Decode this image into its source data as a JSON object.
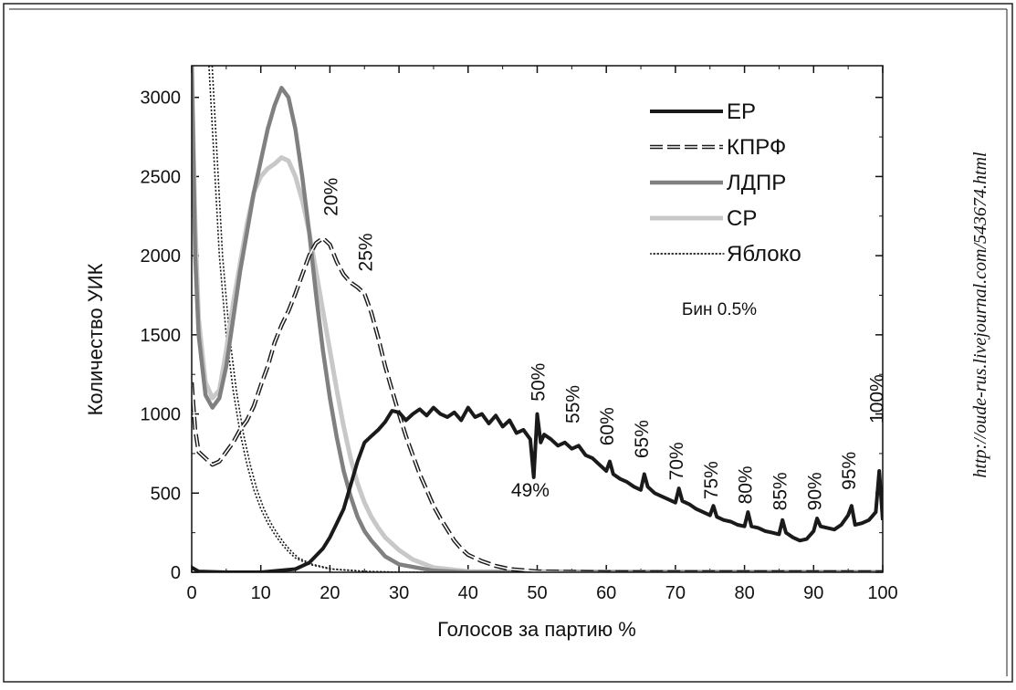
{
  "chart_data": {
    "type": "line",
    "xlabel": "Голосов за партию  %",
    "ylabel": "Количество УИК",
    "xlim": [
      0,
      100
    ],
    "ylim": [
      0,
      3200
    ],
    "x_ticks": [
      0,
      10,
      20,
      30,
      40,
      50,
      60,
      70,
      80,
      90,
      100
    ],
    "y_ticks": [
      0,
      500,
      1000,
      1500,
      2000,
      2500,
      3000
    ],
    "bin_note": "Бин 0.5%",
    "source_url": "http://oude-rus.livejournal.com/543674.html",
    "legend_position": "top-right",
    "series": [
      {
        "name": "ЕР",
        "style": "solid-thick",
        "color": "#1a1a1a",
        "points": [
          [
            0,
            30
          ],
          [
            1,
            5
          ],
          [
            5,
            0
          ],
          [
            10,
            0
          ],
          [
            15,
            20
          ],
          [
            17,
            60
          ],
          [
            19,
            150
          ],
          [
            20,
            220
          ],
          [
            21,
            310
          ],
          [
            22,
            400
          ],
          [
            23,
            550
          ],
          [
            24,
            700
          ],
          [
            25,
            820
          ],
          [
            26,
            860
          ],
          [
            27,
            900
          ],
          [
            28,
            950
          ],
          [
            29,
            1020
          ],
          [
            30,
            1010
          ],
          [
            31,
            960
          ],
          [
            32,
            1000
          ],
          [
            33,
            1030
          ],
          [
            34,
            990
          ],
          [
            35,
            1040
          ],
          [
            36,
            1000
          ],
          [
            37,
            980
          ],
          [
            38,
            1010
          ],
          [
            39,
            960
          ],
          [
            40,
            1040
          ],
          [
            41,
            980
          ],
          [
            42,
            1000
          ],
          [
            43,
            940
          ],
          [
            44,
            990
          ],
          [
            45,
            920
          ],
          [
            46,
            960
          ],
          [
            47,
            880
          ],
          [
            48,
            900
          ],
          [
            49,
            840
          ],
          [
            49.5,
            600
          ],
          [
            50,
            1000
          ],
          [
            50.5,
            820
          ],
          [
            51,
            870
          ],
          [
            52,
            840
          ],
          [
            53,
            800
          ],
          [
            54,
            820
          ],
          [
            55,
            780
          ],
          [
            56,
            800
          ],
          [
            57,
            740
          ],
          [
            58,
            720
          ],
          [
            59,
            680
          ],
          [
            60,
            640
          ],
          [
            60.5,
            700
          ],
          [
            61,
            620
          ],
          [
            62,
            590
          ],
          [
            63,
            570
          ],
          [
            64,
            540
          ],
          [
            65,
            520
          ],
          [
            65.5,
            620
          ],
          [
            66,
            540
          ],
          [
            67,
            500
          ],
          [
            68,
            480
          ],
          [
            69,
            460
          ],
          [
            70,
            440
          ],
          [
            70.5,
            530
          ],
          [
            71,
            450
          ],
          [
            72,
            430
          ],
          [
            73,
            400
          ],
          [
            74,
            380
          ],
          [
            75,
            360
          ],
          [
            75.5,
            420
          ],
          [
            76,
            350
          ],
          [
            77,
            330
          ],
          [
            78,
            320
          ],
          [
            79,
            300
          ],
          [
            80,
            290
          ],
          [
            80.5,
            380
          ],
          [
            81,
            290
          ],
          [
            82,
            280
          ],
          [
            83,
            260
          ],
          [
            84,
            250
          ],
          [
            85,
            240
          ],
          [
            85.5,
            330
          ],
          [
            86,
            250
          ],
          [
            87,
            220
          ],
          [
            88,
            200
          ],
          [
            89,
            210
          ],
          [
            90,
            260
          ],
          [
            90.5,
            340
          ],
          [
            91,
            290
          ],
          [
            92,
            280
          ],
          [
            93,
            270
          ],
          [
            94,
            300
          ],
          [
            95,
            360
          ],
          [
            95.5,
            420
          ],
          [
            96,
            300
          ],
          [
            97,
            310
          ],
          [
            98,
            330
          ],
          [
            99,
            380
          ],
          [
            99.5,
            640
          ],
          [
            100,
            330
          ]
        ]
      },
      {
        "name": "КПРФ",
        "style": "dashed-double",
        "color": "#1a1a1a",
        "points": [
          [
            0,
            1200
          ],
          [
            0.5,
            900
          ],
          [
            1,
            760
          ],
          [
            2,
            720
          ],
          [
            3,
            680
          ],
          [
            4,
            700
          ],
          [
            5,
            760
          ],
          [
            6,
            820
          ],
          [
            7,
            900
          ],
          [
            8,
            960
          ],
          [
            9,
            1050
          ],
          [
            10,
            1180
          ],
          [
            11,
            1300
          ],
          [
            12,
            1450
          ],
          [
            13,
            1560
          ],
          [
            14,
            1650
          ],
          [
            15,
            1760
          ],
          [
            16,
            1880
          ],
          [
            17,
            2000
          ],
          [
            18,
            2080
          ],
          [
            19,
            2110
          ],
          [
            20,
            2070
          ],
          [
            21,
            1960
          ],
          [
            22,
            1880
          ],
          [
            23,
            1830
          ],
          [
            24,
            1800
          ],
          [
            25,
            1760
          ],
          [
            26,
            1640
          ],
          [
            27,
            1480
          ],
          [
            28,
            1300
          ],
          [
            29,
            1150
          ],
          [
            30,
            1000
          ],
          [
            31,
            860
          ],
          [
            32,
            740
          ],
          [
            33,
            620
          ],
          [
            34,
            520
          ],
          [
            35,
            420
          ],
          [
            36,
            340
          ],
          [
            37,
            270
          ],
          [
            38,
            200
          ],
          [
            39,
            150
          ],
          [
            40,
            110
          ],
          [
            42,
            70
          ],
          [
            44,
            40
          ],
          [
            46,
            20
          ],
          [
            50,
            5
          ],
          [
            60,
            0
          ],
          [
            100,
            0
          ]
        ]
      },
      {
        "name": "ЛДПР",
        "style": "solid-gray",
        "color": "#808080",
        "points": [
          [
            0,
            3200
          ],
          [
            0.5,
            2000
          ],
          [
            1,
            1500
          ],
          [
            2,
            1120
          ],
          [
            3,
            1040
          ],
          [
            4,
            1100
          ],
          [
            5,
            1300
          ],
          [
            6,
            1600
          ],
          [
            7,
            1900
          ],
          [
            8,
            2150
          ],
          [
            9,
            2400
          ],
          [
            10,
            2600
          ],
          [
            11,
            2800
          ],
          [
            12,
            2950
          ],
          [
            13,
            3060
          ],
          [
            14,
            3000
          ],
          [
            15,
            2800
          ],
          [
            16,
            2500
          ],
          [
            17,
            2150
          ],
          [
            18,
            1750
          ],
          [
            19,
            1400
          ],
          [
            20,
            1100
          ],
          [
            21,
            850
          ],
          [
            22,
            640
          ],
          [
            23,
            480
          ],
          [
            24,
            350
          ],
          [
            25,
            260
          ],
          [
            26,
            200
          ],
          [
            27,
            150
          ],
          [
            28,
            100
          ],
          [
            30,
            50
          ],
          [
            35,
            10
          ],
          [
            40,
            0
          ],
          [
            100,
            0
          ]
        ]
      },
      {
        "name": "СР",
        "style": "solid-light",
        "color": "#c8c8c8",
        "points": [
          [
            0,
            3200
          ],
          [
            0.5,
            2200
          ],
          [
            1,
            1600
          ],
          [
            2,
            1200
          ],
          [
            3,
            1100
          ],
          [
            4,
            1150
          ],
          [
            5,
            1400
          ],
          [
            6,
            1700
          ],
          [
            7,
            1950
          ],
          [
            8,
            2200
          ],
          [
            9,
            2400
          ],
          [
            10,
            2500
          ],
          [
            11,
            2550
          ],
          [
            12,
            2580
          ],
          [
            13,
            2620
          ],
          [
            14,
            2600
          ],
          [
            15,
            2500
          ],
          [
            16,
            2350
          ],
          [
            17,
            2150
          ],
          [
            18,
            1900
          ],
          [
            19,
            1650
          ],
          [
            20,
            1400
          ],
          [
            21,
            1150
          ],
          [
            22,
            920
          ],
          [
            23,
            720
          ],
          [
            24,
            560
          ],
          [
            25,
            440
          ],
          [
            26,
            350
          ],
          [
            27,
            280
          ],
          [
            28,
            220
          ],
          [
            30,
            140
          ],
          [
            32,
            80
          ],
          [
            35,
            30
          ],
          [
            40,
            5
          ],
          [
            100,
            0
          ]
        ]
      },
      {
        "name": "Яблоко",
        "style": "dotted",
        "color": "#1a1a1a",
        "points": [
          [
            2.5,
            3200
          ],
          [
            3,
            2800
          ],
          [
            3.5,
            2400
          ],
          [
            4,
            2000
          ],
          [
            5,
            1500
          ],
          [
            6,
            1150
          ],
          [
            7,
            880
          ],
          [
            8,
            680
          ],
          [
            9,
            520
          ],
          [
            10,
            400
          ],
          [
            11,
            310
          ],
          [
            12,
            240
          ],
          [
            13,
            180
          ],
          [
            14,
            130
          ],
          [
            15,
            90
          ],
          [
            17,
            50
          ],
          [
            20,
            20
          ],
          [
            25,
            5
          ],
          [
            30,
            0
          ],
          [
            100,
            0
          ]
        ]
      }
    ],
    "annotations": [
      {
        "text": "20%",
        "x": 20,
        "y": 2250,
        "rotated": true
      },
      {
        "text": "25%",
        "x": 25,
        "y": 1900,
        "rotated": true
      },
      {
        "text": "50%",
        "x": 50,
        "y": 1080,
        "rotated": true
      },
      {
        "text": "49%",
        "x": 49,
        "y": 480,
        "rotated": false
      },
      {
        "text": "55%",
        "x": 55,
        "y": 940,
        "rotated": true
      },
      {
        "text": "60%",
        "x": 60,
        "y": 800,
        "rotated": true
      },
      {
        "text": "65%",
        "x": 65,
        "y": 720,
        "rotated": true
      },
      {
        "text": "70%",
        "x": 70,
        "y": 580,
        "rotated": true
      },
      {
        "text": "75%",
        "x": 75,
        "y": 460,
        "rotated": true
      },
      {
        "text": "80%",
        "x": 80,
        "y": 430,
        "rotated": true
      },
      {
        "text": "85%",
        "x": 85,
        "y": 390,
        "rotated": true
      },
      {
        "text": "90%",
        "x": 90,
        "y": 390,
        "rotated": true
      },
      {
        "text": "95%",
        "x": 95,
        "y": 520,
        "rotated": true
      },
      {
        "text": "100%",
        "x": 99,
        "y": 940,
        "rotated": true
      }
    ]
  }
}
